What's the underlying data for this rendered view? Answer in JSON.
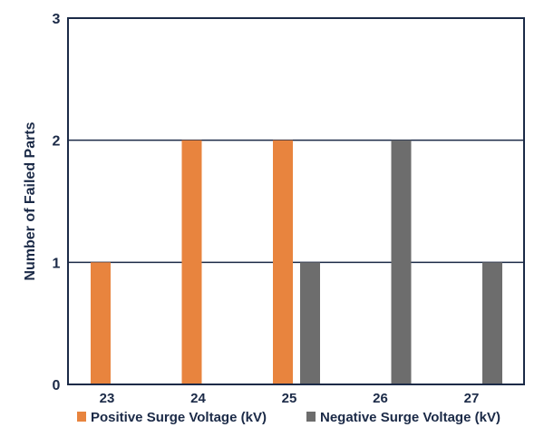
{
  "chart_data": {
    "type": "bar",
    "title": "",
    "xlabel": "",
    "ylabel": "Number of Failed Parts",
    "categories": [
      "23",
      "24",
      "25",
      "26",
      "27"
    ],
    "series": [
      {
        "name": "Positive Surge Voltage (kV)",
        "values": [
          1,
          2,
          2,
          0,
          0
        ],
        "color": "#e8843e"
      },
      {
        "name": "Negative Surge Voltage (kV)",
        "values": [
          0,
          0,
          1,
          2,
          1
        ],
        "color": "#6d6d6d"
      }
    ],
    "ylim": [
      0,
      3
    ],
    "yticks": [
      "0",
      "1",
      "2",
      "3"
    ],
    "grid": true,
    "legend": "bottom",
    "axis_color": "#1b2a47"
  }
}
